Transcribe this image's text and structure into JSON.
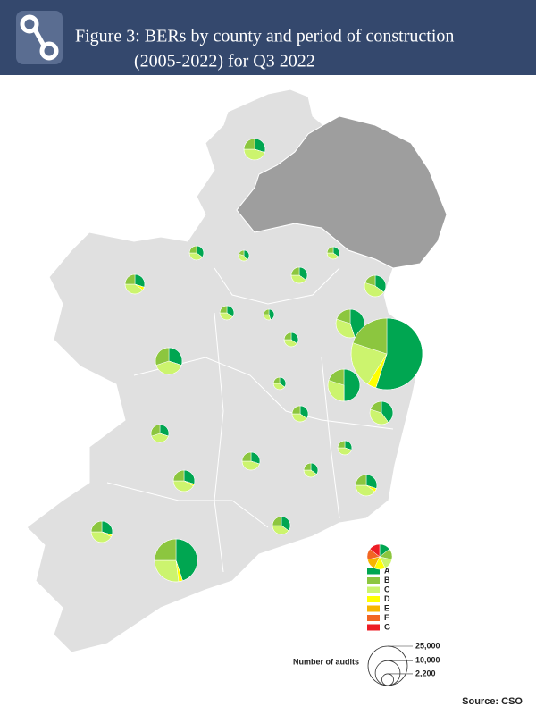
{
  "chart_data": {
    "type": "pie-map",
    "title": [
      "Figure 3: BERs by county and period of construction",
      "(2005-2022) for Q3 2022"
    ],
    "series": [
      {
        "name": "A",
        "color": "#00a651",
        "values": [
          30,
          30,
          35,
          40,
          35,
          35,
          35,
          35,
          45,
          35,
          45,
          55,
          30,
          35,
          50,
          35,
          40,
          30,
          30,
          30,
          35,
          30,
          30,
          30,
          35,
          45
        ]
      },
      {
        "name": "B",
        "color": "#8cc63f",
        "values": [
          25,
          25,
          25,
          20,
          25,
          25,
          20,
          25,
          25,
          25,
          20,
          20,
          30,
          25,
          20,
          25,
          20,
          30,
          25,
          25,
          25,
          25,
          25,
          25,
          25,
          25
        ]
      },
      {
        "name": "C",
        "color": "#ccf46e",
        "values": [
          45,
          40,
          40,
          40,
          40,
          40,
          45,
          40,
          30,
          40,
          35,
          21,
          40,
          40,
          30,
          40,
          40,
          40,
          45,
          45,
          40,
          42,
          40,
          42,
          40,
          27
        ]
      },
      {
        "name": "D",
        "color": "#ffff00",
        "values": [
          0,
          5,
          0,
          0,
          0,
          0,
          0,
          0,
          0,
          0,
          0,
          4,
          0,
          0,
          0,
          0,
          0,
          0,
          0,
          0,
          0,
          3,
          5,
          3,
          0,
          3
        ]
      },
      {
        "name": "E",
        "color": "#f7b500",
        "values": [
          0,
          0,
          0,
          0,
          0,
          0,
          0,
          0,
          0,
          0,
          0,
          0,
          0,
          0,
          0,
          0,
          0,
          0,
          0,
          0,
          0,
          0,
          0,
          0,
          0,
          0
        ]
      },
      {
        "name": "F",
        "color": "#f26522",
        "values": [
          0,
          0,
          0,
          0,
          0,
          0,
          0,
          0,
          0,
          0,
          0,
          0,
          0,
          0,
          0,
          0,
          0,
          0,
          0,
          0,
          0,
          0,
          0,
          0,
          0,
          0
        ]
      },
      {
        "name": "G",
        "color": "#ed1c24",
        "values": [
          0,
          0,
          0,
          0,
          0,
          0,
          0,
          0,
          0,
          0,
          0,
          0,
          0,
          0,
          0,
          0,
          0,
          0,
          0,
          0,
          0,
          0,
          0,
          0,
          0,
          0
        ]
      }
    ],
    "totals": [
      7400,
      6250,
      3300,
      1900,
      4200,
      2500,
      7400,
      3300,
      1900,
      3300,
      13200,
      82600,
      11600,
      2500,
      16700,
      4200,
      8700,
      5200,
      3300,
      5200,
      3300,
      7400,
      7400,
      7400,
      5200,
      29800
    ],
    "size_legend_title": "Number of audits",
    "size_legend": [
      {
        "value": 25000,
        "label": "25,000"
      },
      {
        "value": 10000,
        "label": "10,000"
      },
      {
        "value": 2200,
        "label": "2,200"
      }
    ],
    "source": "Source: CSO"
  }
}
